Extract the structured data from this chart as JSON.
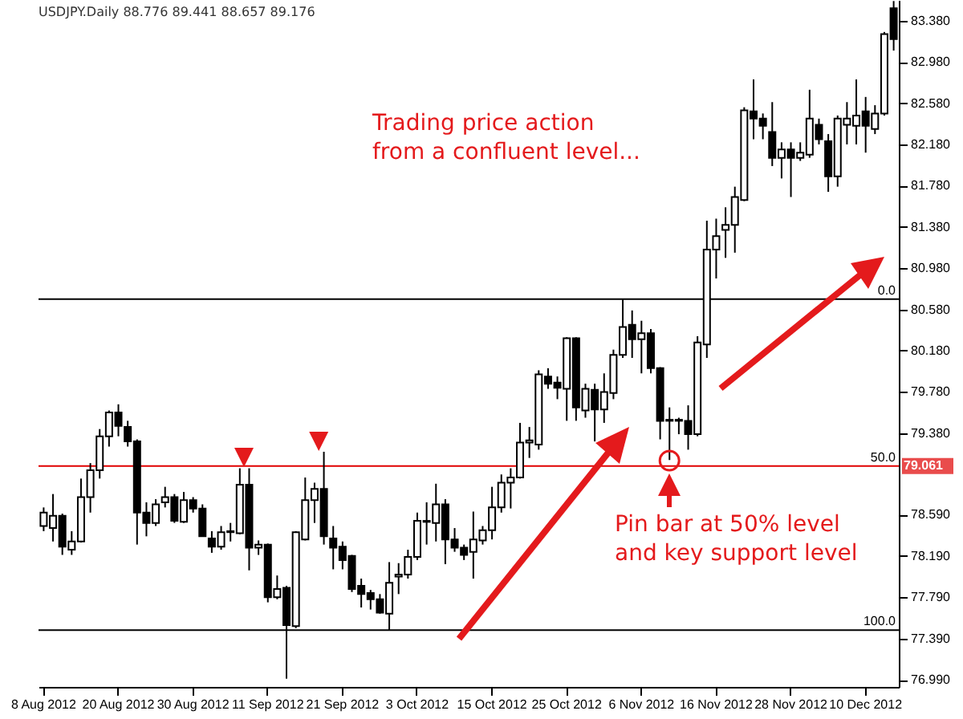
{
  "chart_data": {
    "type": "candlestick",
    "title": "USDJPY.Daily  88.776 89.441 88.657 89.176",
    "categories": [
      "8 Aug 2012",
      null,
      null,
      null,
      null,
      null,
      null,
      null,
      "20 Aug 2012",
      null,
      null,
      null,
      null,
      null,
      null,
      null,
      "30 Aug 2012",
      null,
      null,
      null,
      null,
      null,
      null,
      null,
      "11 Sep 2012",
      null,
      null,
      null,
      null,
      null,
      null,
      null,
      "21 Sep 2012",
      null,
      null,
      null,
      null,
      null,
      null,
      null,
      "3 Oct 2012",
      null,
      null,
      null,
      null,
      null,
      null,
      null,
      "15 Oct 2012",
      null,
      null,
      null,
      null,
      null,
      null,
      null,
      "25 Oct 2012",
      null,
      null,
      null,
      null,
      null,
      null,
      null,
      "6 Nov 2012",
      null,
      null,
      null,
      null,
      null,
      null,
      null,
      "16 Nov 2012",
      null,
      null,
      null,
      null,
      null,
      null,
      null,
      "28 Nov 2012",
      null,
      null,
      null,
      null,
      null,
      null,
      null,
      "10 Dec 2012",
      null,
      null,
      null
    ],
    "ohlc": [
      [
        78.48,
        78.66,
        78.43,
        78.61
      ],
      [
        78.46,
        78.79,
        78.33,
        78.58
      ],
      [
        78.58,
        78.6,
        78.2,
        78.28
      ],
      [
        78.25,
        78.43,
        78.2,
        78.33
      ],
      [
        78.33,
        78.94,
        78.32,
        78.76
      ],
      [
        78.76,
        79.09,
        78.61,
        79.02
      ],
      [
        79.02,
        79.42,
        78.94,
        79.35
      ],
      [
        79.35,
        79.6,
        79.25,
        79.58
      ],
      [
        79.58,
        79.66,
        79.35,
        79.45
      ],
      [
        79.44,
        79.5,
        79.25,
        79.3
      ],
      [
        79.3,
        79.32,
        78.3,
        78.61
      ],
      [
        78.61,
        78.71,
        78.38,
        78.51
      ],
      [
        78.51,
        78.74,
        78.48,
        78.69
      ],
      [
        78.71,
        78.86,
        78.66,
        78.76
      ],
      [
        78.76,
        78.79,
        78.51,
        78.53
      ],
      [
        78.52,
        78.81,
        78.51,
        78.73
      ],
      [
        78.73,
        78.76,
        78.61,
        78.65
      ],
      [
        78.65,
        78.69,
        78.38,
        78.38
      ],
      [
        78.36,
        78.43,
        78.22,
        78.28
      ],
      [
        78.28,
        78.48,
        78.25,
        78.42
      ],
      [
        78.42,
        78.51,
        78.33,
        78.43
      ],
      [
        78.41,
        79.04,
        78.4,
        78.88
      ],
      [
        78.88,
        79.04,
        78.05,
        78.27
      ],
      [
        78.27,
        78.34,
        78.2,
        78.3
      ],
      [
        78.3,
        78.31,
        77.74,
        77.79
      ],
      [
        77.79,
        78.0,
        77.77,
        77.87
      ],
      [
        77.88,
        77.9,
        77.0,
        77.52
      ],
      [
        77.51,
        78.43,
        77.49,
        78.42
      ],
      [
        78.35,
        78.95,
        78.34,
        78.73
      ],
      [
        78.73,
        78.9,
        78.51,
        78.84
      ],
      [
        78.84,
        79.2,
        78.3,
        78.38
      ],
      [
        78.36,
        78.48,
        78.06,
        78.27
      ],
      [
        78.28,
        78.33,
        78.06,
        78.15
      ],
      [
        78.19,
        78.2,
        77.84,
        77.87
      ],
      [
        77.9,
        77.97,
        77.69,
        77.82
      ],
      [
        77.83,
        77.86,
        77.67,
        77.77
      ],
      [
        77.77,
        77.82,
        77.63,
        77.64
      ],
      [
        77.63,
        78.13,
        77.47,
        77.93
      ],
      [
        77.99,
        78.12,
        77.82,
        78.01
      ],
      [
        78.01,
        78.25,
        77.97,
        78.18
      ],
      [
        78.18,
        78.61,
        78.15,
        78.53
      ],
      [
        78.52,
        78.71,
        78.3,
        78.53
      ],
      [
        78.51,
        78.89,
        78.33,
        78.69
      ],
      [
        78.69,
        78.74,
        78.11,
        78.35
      ],
      [
        78.35,
        78.46,
        78.23,
        78.27
      ],
      [
        78.27,
        78.3,
        78.15,
        78.2
      ],
      [
        78.23,
        78.62,
        77.97,
        78.35
      ],
      [
        78.34,
        78.48,
        78.3,
        78.44
      ],
      [
        78.44,
        78.86,
        78.35,
        78.66
      ],
      [
        78.66,
        78.98,
        78.61,
        78.9
      ],
      [
        78.9,
        79.04,
        78.65,
        78.95
      ],
      [
        78.95,
        79.48,
        78.94,
        79.29
      ],
      [
        79.29,
        79.44,
        79.14,
        79.31
      ],
      [
        79.27,
        79.99,
        79.22,
        79.95
      ],
      [
        79.93,
        80.01,
        79.81,
        79.86
      ],
      [
        79.87,
        79.93,
        79.71,
        79.82
      ],
      [
        79.81,
        80.31,
        79.5,
        80.3
      ],
      [
        80.3,
        80.31,
        79.5,
        79.63
      ],
      [
        79.6,
        79.86,
        79.53,
        79.81
      ],
      [
        79.8,
        79.86,
        79.3,
        79.61
      ],
      [
        79.61,
        79.96,
        79.48,
        79.78
      ],
      [
        79.77,
        80.19,
        79.71,
        80.14
      ],
      [
        80.14,
        80.68,
        80.11,
        80.41
      ],
      [
        80.43,
        80.57,
        80.11,
        80.29
      ],
      [
        80.29,
        80.47,
        79.96,
        80.35
      ],
      [
        80.35,
        80.39,
        79.96,
        80.01
      ],
      [
        80.01,
        80.02,
        79.32,
        79.5
      ],
      [
        79.5,
        79.63,
        79.12,
        79.51
      ],
      [
        79.5,
        79.53,
        79.37,
        79.51
      ],
      [
        79.5,
        79.65,
        79.22,
        79.37
      ],
      [
        79.37,
        80.32,
        79.35,
        80.26
      ],
      [
        80.24,
        81.44,
        80.11,
        81.16
      ],
      [
        81.16,
        81.46,
        80.88,
        81.29
      ],
      [
        81.35,
        81.57,
        81.08,
        81.4
      ],
      [
        81.4,
        81.77,
        81.13,
        81.67
      ],
      [
        81.64,
        82.54,
        81.63,
        82.51
      ],
      [
        82.5,
        82.81,
        82.23,
        82.43
      ],
      [
        82.43,
        82.48,
        82.23,
        82.36
      ],
      [
        82.3,
        82.59,
        81.97,
        82.05
      ],
      [
        82.05,
        82.2,
        81.85,
        82.13
      ],
      [
        82.13,
        82.2,
        81.67,
        82.05
      ],
      [
        82.05,
        82.2,
        82.02,
        82.1
      ],
      [
        82.08,
        82.71,
        82.05,
        82.43
      ],
      [
        82.37,
        82.43,
        82.18,
        82.23
      ],
      [
        82.21,
        82.28,
        81.72,
        81.87
      ],
      [
        81.87,
        82.46,
        81.77,
        82.43
      ],
      [
        82.37,
        82.59,
        82.18,
        82.43
      ],
      [
        82.36,
        82.81,
        82.18,
        82.46
      ],
      [
        82.5,
        82.64,
        82.1,
        82.36
      ],
      [
        82.33,
        82.56,
        82.28,
        82.48
      ],
      [
        82.48,
        83.27,
        82.46,
        83.25
      ],
      [
        83.5,
        83.57,
        83.09,
        83.2
      ]
    ],
    "ylim": [
      76.92,
      83.58
    ],
    "yticks": [
      {
        "value": 83.38,
        "label": "83.380"
      },
      {
        "value": 82.98,
        "label": "82.980"
      },
      {
        "value": 82.58,
        "label": "82.580"
      },
      {
        "value": 82.18,
        "label": "82.180"
      },
      {
        "value": 81.78,
        "label": "81.780"
      },
      {
        "value": 81.38,
        "label": "81.380"
      },
      {
        "value": 80.98,
        "label": "80.980"
      },
      {
        "value": 80.58,
        "label": "80.580"
      },
      {
        "value": 80.18,
        "label": "80.180"
      },
      {
        "value": 79.78,
        "label": "79.780"
      },
      {
        "value": 79.38,
        "label": "79.380"
      },
      {
        "value": 78.59,
        "label": "78.590"
      },
      {
        "value": 78.19,
        "label": "78.190"
      },
      {
        "value": 77.79,
        "label": "77.790"
      },
      {
        "value": 77.39,
        "label": "77.390"
      },
      {
        "value": 76.99,
        "label": "76.990"
      }
    ],
    "ref_lines": [
      {
        "axis": "y",
        "value": 80.68,
        "color": "#000000"
      },
      {
        "axis": "y",
        "value": 79.061,
        "label": "79.061",
        "color": "#e00000"
      },
      {
        "axis": "y",
        "value": 77.47,
        "color": "#000000"
      }
    ],
    "annotations": [
      "Trading price action\nfrom a confluent level...",
      "Pin bar at 50% level\nand key support level",
      {
        "text": "0.0",
        "y": 80.68
      },
      {
        "text": "50.0",
        "y": 79.061
      },
      {
        "text": "100.0",
        "y": 77.47
      }
    ]
  }
}
